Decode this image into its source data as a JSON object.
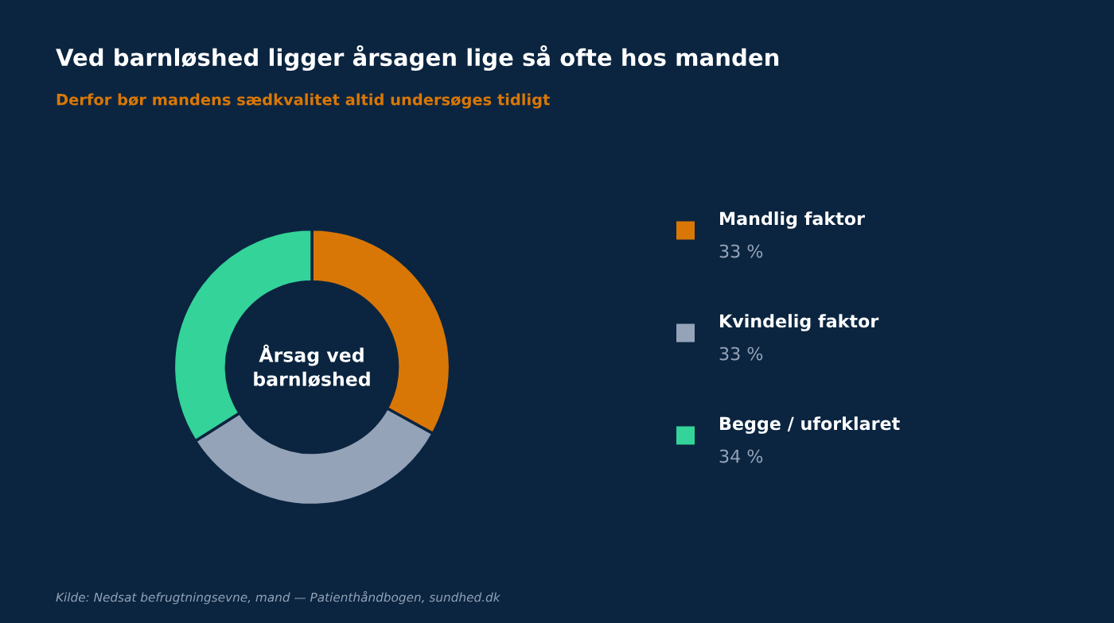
{
  "chart_data": {
    "type": "donut",
    "title": "Ved barnløshed ligger årsagen lige så ofte hos manden",
    "subtitle": "Derfor bør mandens sædkvalitet altid undersøges tidligt",
    "categories": [
      "Mandlig faktor",
      "Kvindelig faktor",
      "Begge / uforklaret"
    ],
    "values": [
      33,
      33,
      34
    ],
    "value_labels": [
      "33 %",
      "33 %",
      "34 %"
    ],
    "colors": [
      "#d97706",
      "#94a3b8",
      "#34d399"
    ],
    "legend": "right",
    "annotations": [
      "Årsag ved\nbarnløshed",
      "Kilde: Nedsat befrugtningsevne, mand — Patienthåndbogen, sundhed.dk"
    ]
  }
}
